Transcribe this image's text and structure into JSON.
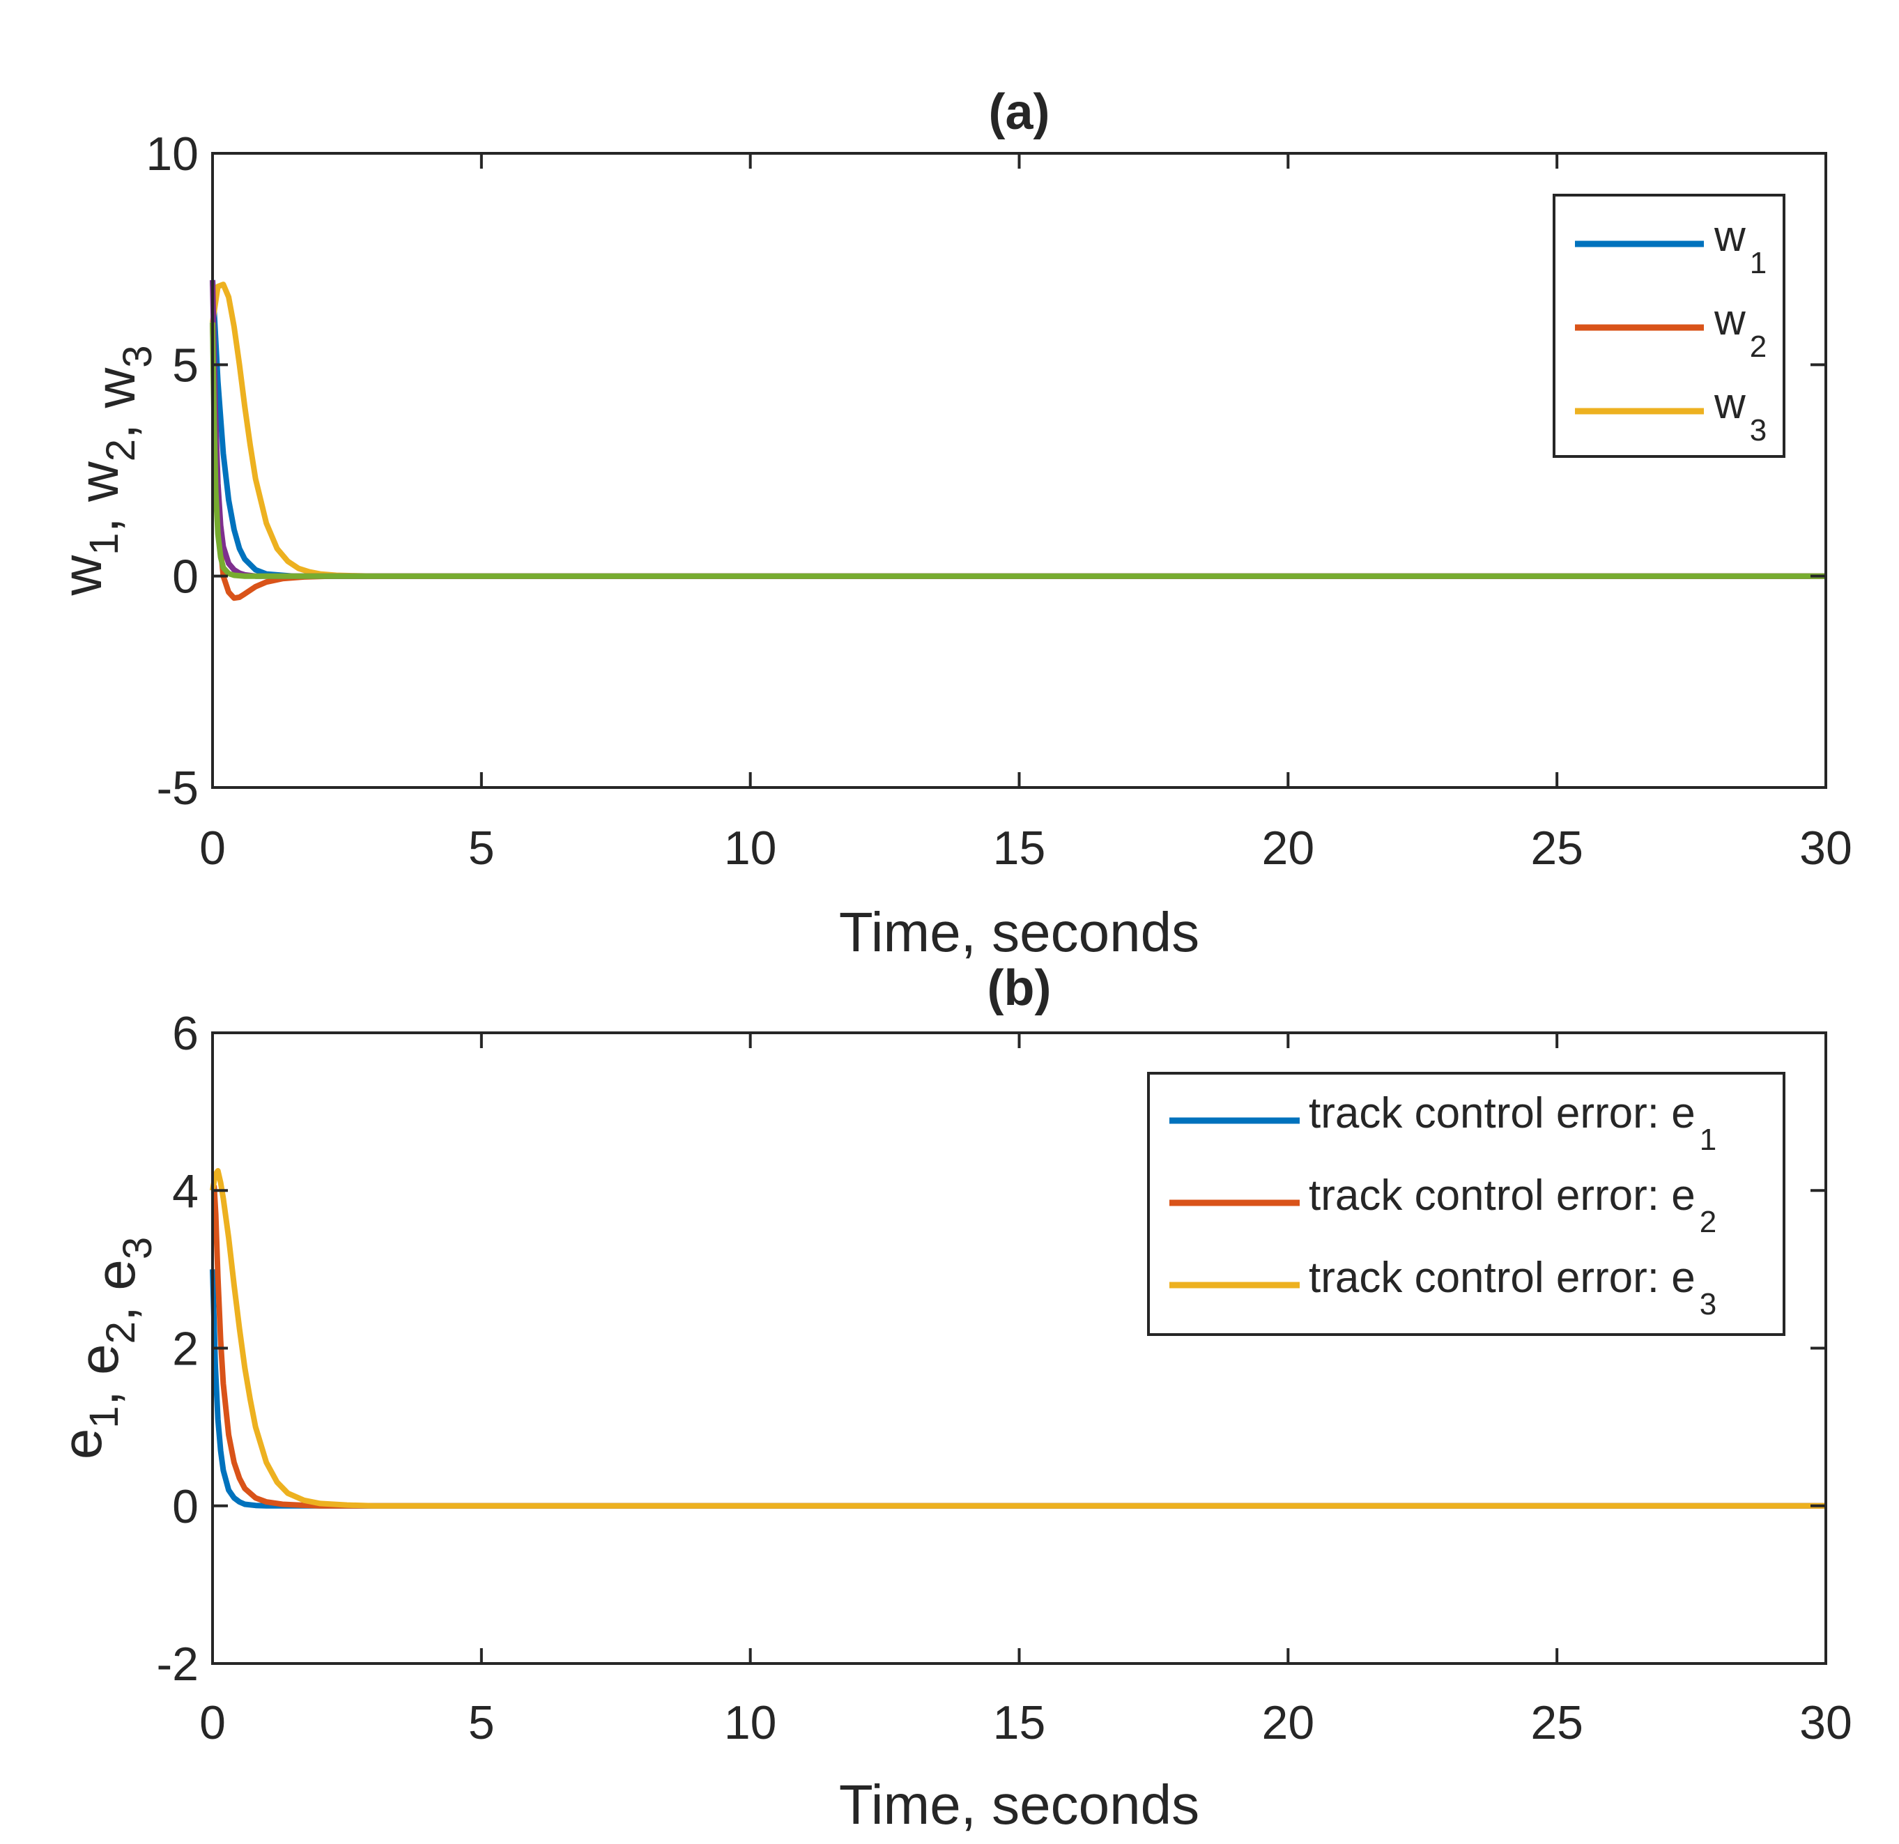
{
  "colors": {
    "blue": "#0072BD",
    "orange": "#D95319",
    "yellow": "#EDB120",
    "purple": "#7E2F8E",
    "green": "#77AC30",
    "axis": "#262626"
  },
  "chart_data": [
    {
      "type": "line",
      "title": "(a)",
      "xlabel": "Time, seconds",
      "ylabel": "w1, w2, w3",
      "ylabel_parts": [
        {
          "t": "w",
          "sub": "1"
        },
        {
          "t": ", w",
          "sub": "2"
        },
        {
          "t": ", w",
          "sub": "3"
        }
      ],
      "xlim": [
        0,
        30
      ],
      "ylim": [
        -5,
        10
      ],
      "xticks": [
        0,
        5,
        10,
        15,
        20,
        25,
        30
      ],
      "xticklabels": [
        "0",
        "5",
        "10",
        "15",
        "20",
        "25",
        "30"
      ],
      "yticks": [
        -5,
        0,
        5,
        10
      ],
      "yticklabels": [
        "-5",
        "0",
        "5",
        "10"
      ],
      "legend_position": "top-right",
      "series": [
        {
          "name": "w1",
          "legend": {
            "t": "w",
            "sub": "1"
          },
          "color": "#0072BD",
          "x": [
            0,
            0.1,
            0.2,
            0.3,
            0.4,
            0.5,
            0.6,
            0.8,
            1.0,
            1.5,
            2.0,
            30
          ],
          "y": [
            7,
            4.6,
            2.9,
            1.8,
            1.1,
            0.65,
            0.4,
            0.15,
            0.05,
            0.0,
            0,
            0
          ]
        },
        {
          "name": "w2",
          "legend": {
            "t": "w",
            "sub": "2"
          },
          "color": "#D95319",
          "x": [
            0,
            0.05,
            0.1,
            0.2,
            0.3,
            0.4,
            0.5,
            0.6,
            0.8,
            1.0,
            1.3,
            1.7,
            2.2,
            30
          ],
          "y": [
            6,
            3.2,
            1.3,
            0.0,
            -0.38,
            -0.52,
            -0.5,
            -0.42,
            -0.25,
            -0.14,
            -0.06,
            -0.02,
            0,
            0
          ]
        },
        {
          "name": "w3",
          "legend": {
            "t": "w",
            "sub": "3"
          },
          "color": "#EDB120",
          "x": [
            0,
            0.1,
            0.2,
            0.3,
            0.4,
            0.5,
            0.6,
            0.7,
            0.8,
            1.0,
            1.2,
            1.4,
            1.6,
            1.8,
            2.0,
            2.3,
            2.6,
            3.0,
            30
          ],
          "y": [
            6,
            6.85,
            6.9,
            6.6,
            5.9,
            5.0,
            4.0,
            3.1,
            2.3,
            1.25,
            0.65,
            0.35,
            0.18,
            0.1,
            0.05,
            0.02,
            0.01,
            0,
            0
          ]
        },
        {
          "name": "",
          "color": "#7E2F8E",
          "x": [
            0,
            0.05,
            0.1,
            0.15,
            0.2,
            0.3,
            0.4,
            0.5,
            0.6,
            0.8,
            30
          ],
          "y": [
            7,
            4.0,
            2.2,
            1.2,
            0.7,
            0.3,
            0.15,
            0.07,
            0.03,
            0,
            0
          ]
        },
        {
          "name": "",
          "color": "#77AC30",
          "x": [
            0,
            0.03,
            0.06,
            0.1,
            0.15,
            0.2,
            0.3,
            0.4,
            0.6,
            30
          ],
          "y": [
            6,
            3.6,
            2.0,
            1.0,
            0.45,
            0.2,
            0.06,
            0.02,
            0,
            0
          ]
        }
      ]
    },
    {
      "type": "line",
      "title": "(b)",
      "xlabel": "Time, seconds",
      "ylabel": "e1, e2, e3",
      "ylabel_parts": [
        {
          "t": "e",
          "sub": "1"
        },
        {
          "t": ", e",
          "sub": "2"
        },
        {
          "t": ", e",
          "sub": "3"
        }
      ],
      "xlim": [
        0,
        30
      ],
      "ylim": [
        -2,
        6
      ],
      "xticks": [
        0,
        5,
        10,
        15,
        20,
        25,
        30
      ],
      "xticklabels": [
        "0",
        "5",
        "10",
        "15",
        "20",
        "25",
        "30"
      ],
      "yticks": [
        -2,
        0,
        2,
        4,
        6
      ],
      "yticklabels": [
        "-2",
        "0",
        "2",
        "4",
        "6"
      ],
      "legend_position": "top-right",
      "series": [
        {
          "name": "track control error: e1",
          "legend": {
            "t": "track control error: e",
            "sub": "1"
          },
          "color": "#0072BD",
          "x": [
            0,
            0.05,
            0.1,
            0.15,
            0.2,
            0.3,
            0.4,
            0.5,
            0.6,
            0.8,
            1.0,
            1.2,
            30
          ],
          "y": [
            3,
            1.8,
            1.1,
            0.7,
            0.45,
            0.2,
            0.1,
            0.05,
            0.02,
            0.005,
            0,
            0,
            0
          ]
        },
        {
          "name": "track control error: e2",
          "legend": {
            "t": "track control error: e",
            "sub": "2"
          },
          "color": "#D95319",
          "x": [
            0,
            0.03,
            0.06,
            0.1,
            0.15,
            0.2,
            0.3,
            0.4,
            0.5,
            0.6,
            0.8,
            1.0,
            1.3,
            1.6,
            2.0,
            30
          ],
          "y": [
            4,
            4.05,
            3.7,
            2.9,
            2.1,
            1.55,
            0.9,
            0.55,
            0.35,
            0.22,
            0.1,
            0.05,
            0.02,
            0.01,
            0,
            0
          ]
        },
        {
          "name": "track control error: e3",
          "legend": {
            "t": "track control error: e",
            "sub": "3"
          },
          "color": "#EDB120",
          "x": [
            0,
            0.05,
            0.1,
            0.15,
            0.2,
            0.3,
            0.4,
            0.5,
            0.6,
            0.7,
            0.8,
            1.0,
            1.2,
            1.4,
            1.7,
            2.0,
            2.5,
            3.0,
            30
          ],
          "y": [
            4,
            4.2,
            4.25,
            4.1,
            3.9,
            3.4,
            2.8,
            2.25,
            1.75,
            1.35,
            1.0,
            0.55,
            0.3,
            0.16,
            0.07,
            0.03,
            0.01,
            0,
            0
          ]
        }
      ]
    }
  ]
}
